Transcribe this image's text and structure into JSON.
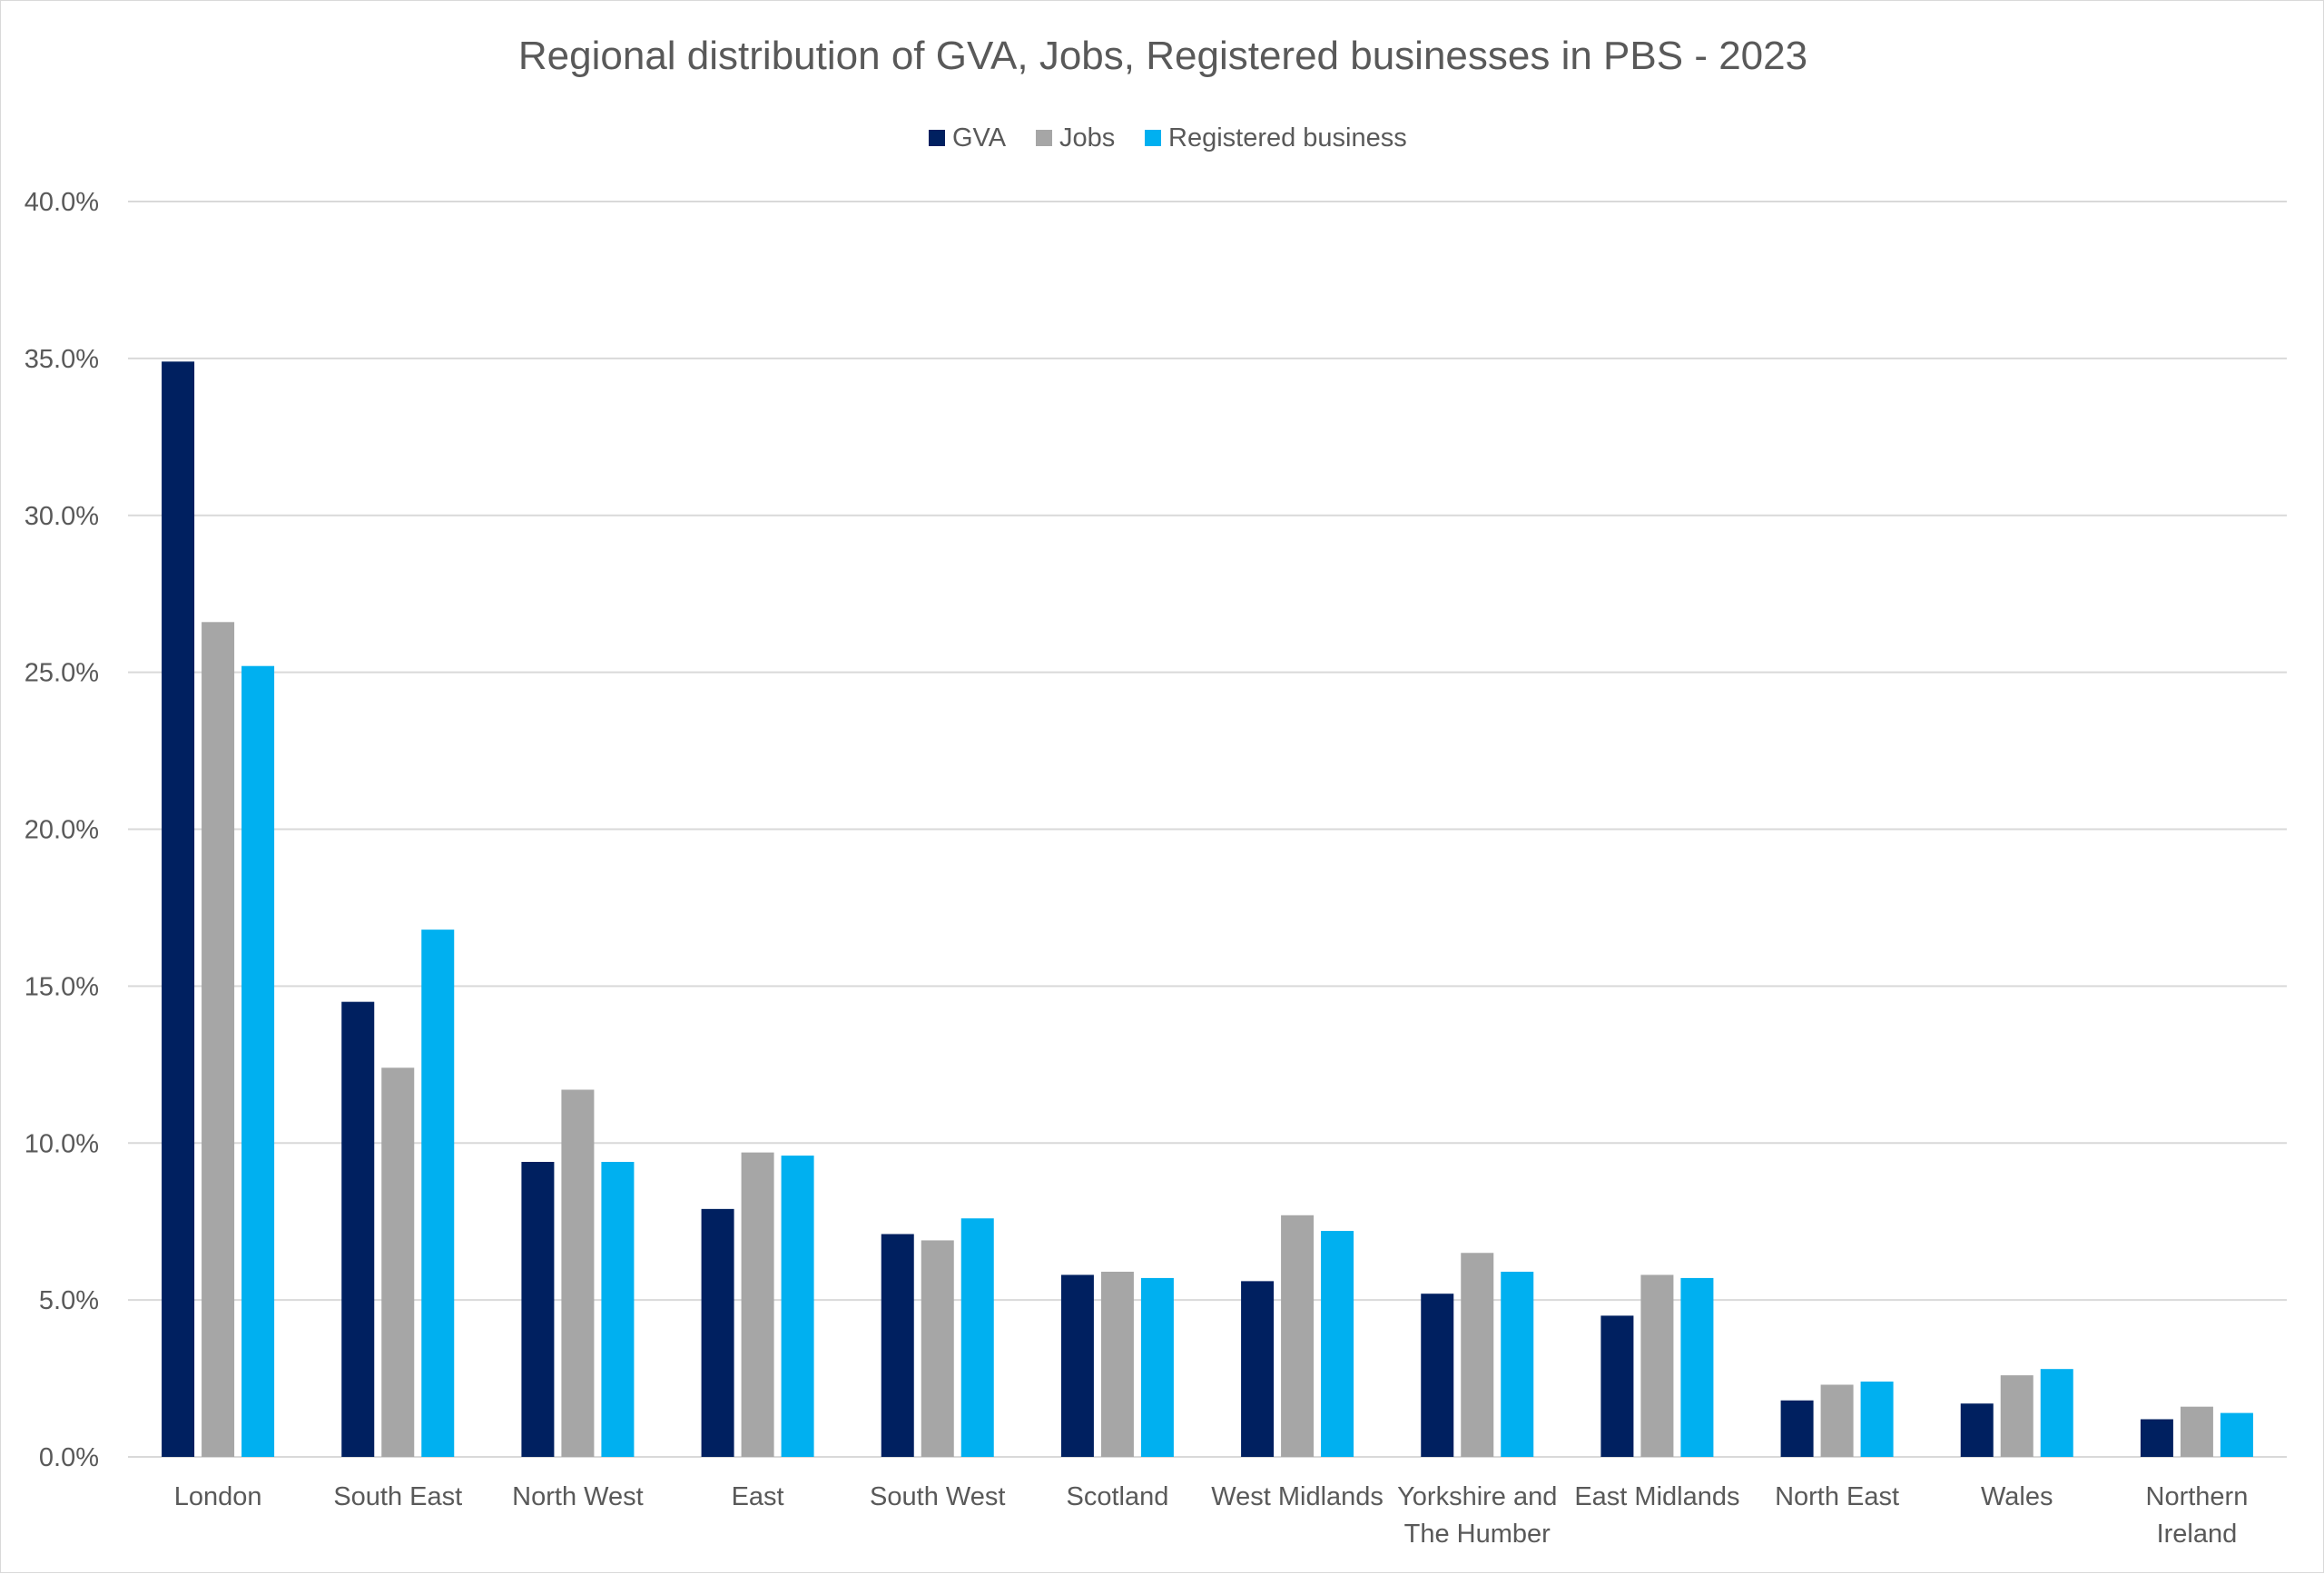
{
  "chart_data": {
    "type": "bar",
    "title": "Regional distribution of GVA, Jobs, Registered businesses in PBS - 2023",
    "xlabel": "",
    "ylabel": "",
    "ylim": [
      0,
      40
    ],
    "yticks": [
      "0.0%",
      "5.0%",
      "10.0%",
      "15.0%",
      "20.0%",
      "25.0%",
      "30.0%",
      "35.0%",
      "40.0%"
    ],
    "ytick_values": [
      0,
      5,
      10,
      15,
      20,
      25,
      30,
      35,
      40
    ],
    "grid": true,
    "legend_position": "top-center",
    "categories": [
      [
        "London"
      ],
      [
        "South East"
      ],
      [
        "North West"
      ],
      [
        "East"
      ],
      [
        "South West"
      ],
      [
        "Scotland"
      ],
      [
        "West Midlands"
      ],
      [
        "Yorkshire and",
        "The Humber"
      ],
      [
        "East Midlands"
      ],
      [
        "North East"
      ],
      [
        "Wales"
      ],
      [
        "Northern",
        "Ireland"
      ]
    ],
    "series": [
      {
        "name": "GVA",
        "color": "#002060",
        "values": [
          34.9,
          14.5,
          9.4,
          7.9,
          7.1,
          5.8,
          5.6,
          5.2,
          4.5,
          1.8,
          1.7,
          1.2
        ]
      },
      {
        "name": "Jobs",
        "color": "#a6a6a6",
        "values": [
          26.6,
          12.4,
          11.7,
          9.7,
          6.9,
          5.9,
          7.7,
          6.5,
          5.8,
          2.3,
          2.6,
          1.6
        ]
      },
      {
        "name": "Registered business",
        "color": "#00b0f0",
        "values": [
          25.2,
          16.8,
          9.4,
          9.6,
          7.6,
          5.7,
          7.2,
          5.9,
          5.7,
          2.4,
          2.8,
          1.4
        ]
      }
    ]
  }
}
